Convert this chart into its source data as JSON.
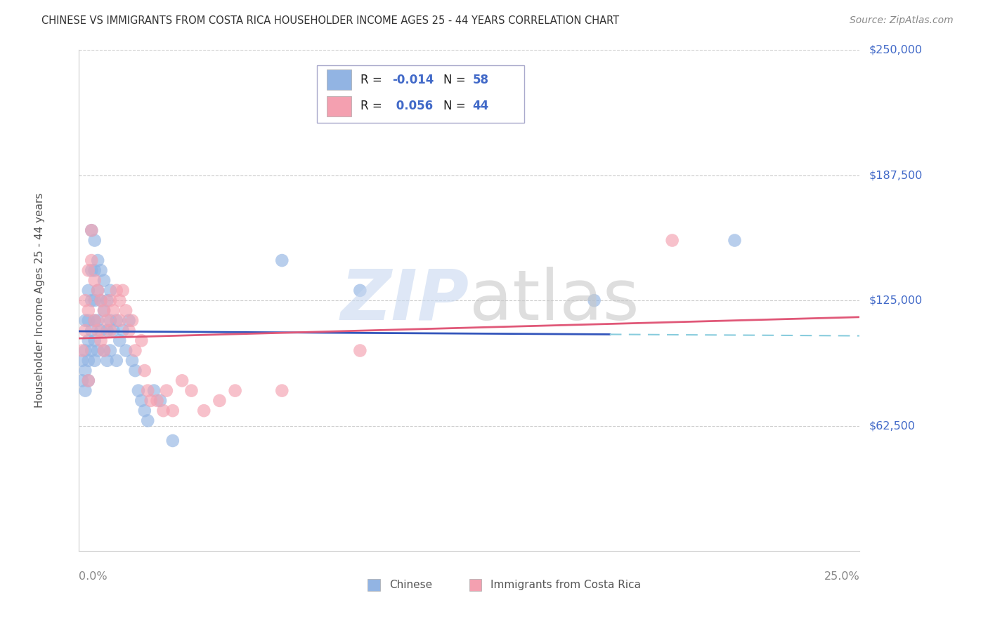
{
  "title": "CHINESE VS IMMIGRANTS FROM COSTA RICA HOUSEHOLDER INCOME AGES 25 - 44 YEARS CORRELATION CHART",
  "source": "Source: ZipAtlas.com",
  "ylabel": "Householder Income Ages 25 - 44 years",
  "xmin": 0.0,
  "xmax": 0.25,
  "ymin": 0,
  "ymax": 250000,
  "legend1_label": "Chinese",
  "legend2_label": "Immigrants from Costa Rica",
  "R_chinese": -0.014,
  "N_chinese": 58,
  "R_costa_rica": 0.056,
  "N_costa_rica": 44,
  "blue_color": "#92B4E3",
  "pink_color": "#F4A0B0",
  "blue_line_color": "#3355BB",
  "pink_line_color": "#E05878",
  "blue_dash_color": "#88CCDD",
  "chinese_x": [
    0.001,
    0.001,
    0.002,
    0.002,
    0.002,
    0.002,
    0.003,
    0.003,
    0.003,
    0.003,
    0.003,
    0.004,
    0.004,
    0.004,
    0.004,
    0.004,
    0.005,
    0.005,
    0.005,
    0.005,
    0.005,
    0.005,
    0.006,
    0.006,
    0.006,
    0.006,
    0.007,
    0.007,
    0.007,
    0.008,
    0.008,
    0.008,
    0.009,
    0.009,
    0.009,
    0.01,
    0.01,
    0.01,
    0.011,
    0.012,
    0.012,
    0.013,
    0.014,
    0.015,
    0.016,
    0.017,
    0.018,
    0.019,
    0.02,
    0.021,
    0.022,
    0.024,
    0.026,
    0.03,
    0.065,
    0.09,
    0.165,
    0.21
  ],
  "chinese_y": [
    95000,
    85000,
    115000,
    100000,
    90000,
    80000,
    130000,
    115000,
    105000,
    95000,
    85000,
    160000,
    140000,
    125000,
    110000,
    100000,
    155000,
    140000,
    125000,
    115000,
    105000,
    95000,
    145000,
    130000,
    115000,
    100000,
    140000,
    125000,
    110000,
    135000,
    120000,
    100000,
    125000,
    110000,
    95000,
    130000,
    115000,
    100000,
    110000,
    115000,
    95000,
    105000,
    110000,
    100000,
    115000,
    95000,
    90000,
    80000,
    75000,
    70000,
    65000,
    80000,
    75000,
    55000,
    145000,
    130000,
    125000,
    155000
  ],
  "costa_rica_x": [
    0.001,
    0.002,
    0.002,
    0.003,
    0.003,
    0.004,
    0.004,
    0.005,
    0.005,
    0.006,
    0.006,
    0.007,
    0.007,
    0.008,
    0.008,
    0.009,
    0.01,
    0.01,
    0.011,
    0.012,
    0.013,
    0.013,
    0.014,
    0.015,
    0.016,
    0.017,
    0.018,
    0.02,
    0.021,
    0.022,
    0.023,
    0.025,
    0.027,
    0.028,
    0.03,
    0.033,
    0.036,
    0.04,
    0.045,
    0.05,
    0.065,
    0.09,
    0.19,
    0.003
  ],
  "costa_rica_y": [
    100000,
    125000,
    110000,
    140000,
    120000,
    160000,
    145000,
    135000,
    115000,
    130000,
    110000,
    125000,
    105000,
    120000,
    100000,
    115000,
    125000,
    110000,
    120000,
    130000,
    115000,
    125000,
    130000,
    120000,
    110000,
    115000,
    100000,
    105000,
    90000,
    80000,
    75000,
    75000,
    70000,
    80000,
    70000,
    85000,
    80000,
    70000,
    75000,
    80000,
    80000,
    100000,
    155000,
    85000
  ],
  "ytick_values": [
    62500,
    125000,
    187500,
    250000
  ],
  "ytick_labels": [
    "$62,500",
    "$125,000",
    "$187,500",
    "$250,000"
  ],
  "blue_label_color": "#4169C8",
  "grid_color": "#cccccc"
}
